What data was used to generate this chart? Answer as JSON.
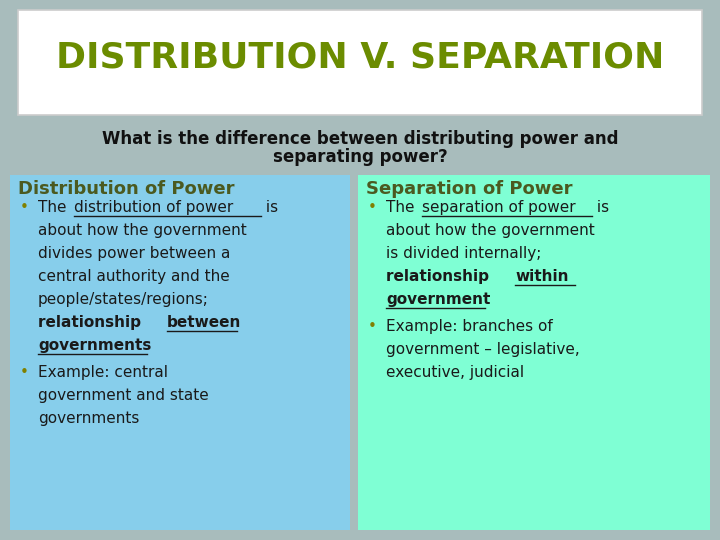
{
  "title": "DISTRIBUTION V. SEPARATION",
  "title_color": "#6B8C00",
  "sub1": "What is the difference between distributing power and",
  "sub2": "separating power?",
  "sub_color": "#111111",
  "bg_color": "#A8BCBC",
  "title_bg": "#FFFFFF",
  "left_bg": "#87CEEB",
  "right_bg": "#7FFFD4",
  "left_header": "Distribution of Power",
  "right_header": "Separation of Power",
  "header_color": "#4B5A20",
  "text_color": "#1a1a1a",
  "bullet_color": "#808000",
  "title_fontsize": 26,
  "header_fontsize": 13,
  "body_fontsize": 11,
  "sub_fontsize": 12
}
